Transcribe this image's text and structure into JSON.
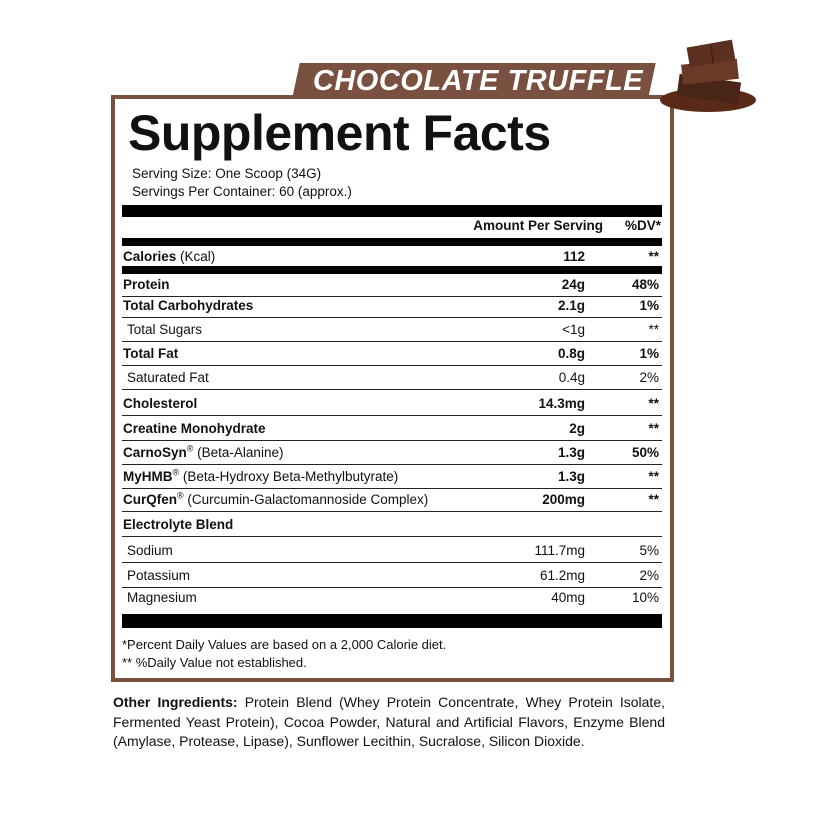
{
  "flavor": "CHOCOLATE TRUFFLE",
  "title": "Supplement Facts",
  "serving_size": "Serving Size: One Scoop (34G)",
  "servings_per_container": "Servings Per Container: 60 (approx.)",
  "header": {
    "amount": "Amount Per Serving",
    "dv": "%DV*"
  },
  "rows": [
    {
      "name": "Calories",
      "extra": " (Kcal)",
      "amount": "112",
      "dv": "**",
      "bold": true
    },
    {
      "name": "Protein",
      "amount": "24g",
      "dv": "48%",
      "bold": true
    },
    {
      "name": "Total Carbohydrates",
      "amount": "2.1g",
      "dv": "1%",
      "bold": true
    },
    {
      "name": "Total Sugars",
      "amount": "<1g",
      "dv": "**",
      "bold": false
    },
    {
      "name": "Total Fat",
      "amount": "0.8g",
      "dv": "1%",
      "bold": true
    },
    {
      "name": "Saturated Fat",
      "amount": "0.4g",
      "dv": "2%",
      "bold": false
    },
    {
      "name": "Cholesterol",
      "amount": "14.3mg",
      "dv": "**",
      "bold": true
    },
    {
      "name": "Creatine Monohydrate",
      "amount": "2g",
      "dv": "**",
      "bold": true
    },
    {
      "name": "CarnoSyn",
      "reg": "®",
      "extra": " (Beta-Alanine)",
      "amount": "1.3g",
      "dv": "50%",
      "bold": true
    },
    {
      "name": "MyHMB",
      "reg": "®",
      "extra": " (Beta-Hydroxy Beta-Methylbutyrate)",
      "amount": "1.3g",
      "dv": "**",
      "bold": true
    },
    {
      "name": "CurQfen",
      "reg": "®",
      "extra": " (Curcumin-Galactomannoside Complex)",
      "amount": "200mg",
      "dv": "**",
      "bold": true
    },
    {
      "name": "Electrolyte Blend",
      "amount": "",
      "dv": "",
      "bold": true
    },
    {
      "name": "Sodium",
      "amount": "111.7mg",
      "dv": "5%",
      "bold": false
    },
    {
      "name": "Potassium",
      "amount": "61.2mg",
      "dv": "2%",
      "bold": false
    },
    {
      "name": "Magnesium",
      "amount": "40mg",
      "dv": "10%",
      "bold": false
    }
  ],
  "footnotes": [
    "*Percent Daily Values are based on a 2,000 Calorie diet.",
    "** %Daily Value not established."
  ],
  "other_ingredients": {
    "label": "Other Ingredients:",
    "text": " Protein Blend (Whey Protein Concentrate, Whey Protein Isolate, Fermented Yeast Protein), Cocoa Powder, Natural and Artificial Flavors, Enzyme Blend (Amylase, Protease, Lipase), Sunflower Lecithin, Sucralose, Silicon Dioxide."
  },
  "colors": {
    "brand": "#7a5040"
  }
}
